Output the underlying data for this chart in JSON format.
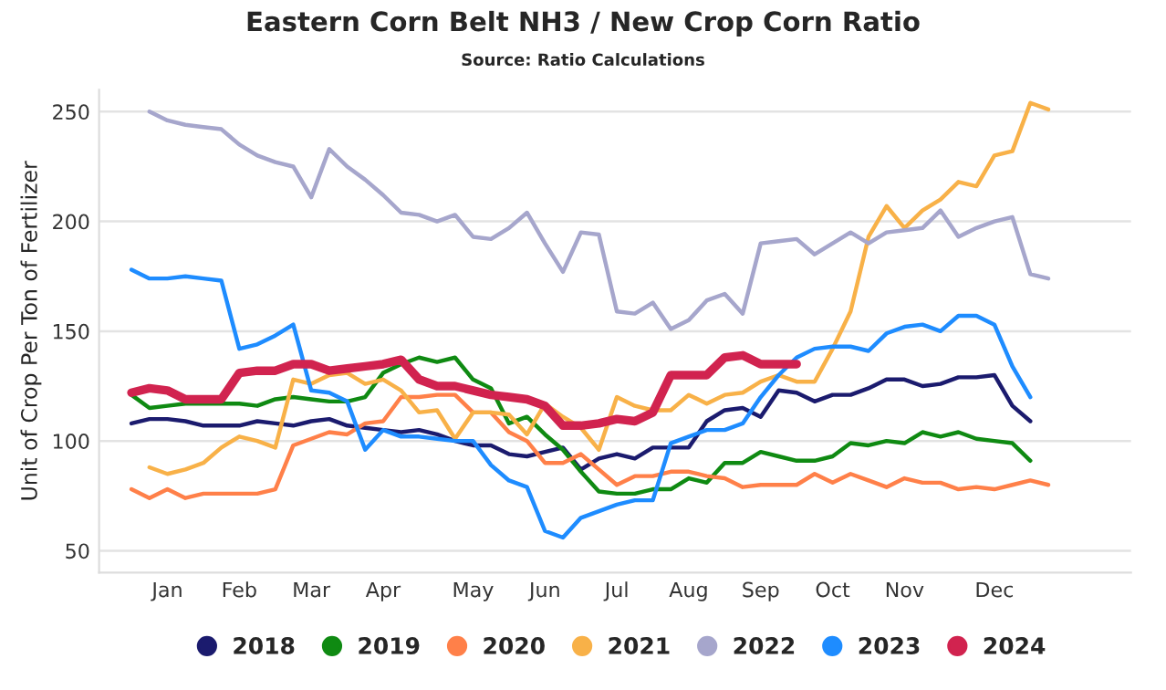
{
  "chart_data": {
    "type": "line",
    "title": "Eastern Corn Belt NH3 / New Crop Corn Ratio",
    "subtitle": "Source: Ratio Calculations",
    "ylabel": "Unit of Crop Per Ton of Fertilizer",
    "categories": [
      null,
      null,
      "Jan",
      null,
      null,
      null,
      "Feb",
      null,
      null,
      null,
      "Mar",
      null,
      null,
      null,
      "Apr",
      null,
      null,
      null,
      null,
      "May",
      null,
      null,
      null,
      "Jun",
      null,
      null,
      null,
      "Jul",
      null,
      null,
      null,
      "Aug",
      null,
      null,
      null,
      "Sep",
      null,
      null,
      null,
      "Oct",
      null,
      null,
      null,
      "Nov",
      null,
      null,
      null,
      null,
      "Dec",
      null,
      null,
      null
    ],
    "ylim": [
      40,
      260
    ],
    "yticks": [
      50,
      100,
      150,
      200,
      250
    ],
    "grid": "y",
    "legend": "bottom",
    "series": [
      {
        "name": "2018",
        "color": "#1b1b6e",
        "values": [
          108,
          110,
          110,
          109,
          107,
          107,
          107,
          109,
          108,
          107,
          109,
          110,
          107,
          106,
          105,
          104,
          105,
          103,
          100,
          98,
          98,
          94,
          93,
          95,
          97,
          87,
          92,
          94,
          92,
          97,
          97,
          97,
          109,
          114,
          115,
          111,
          123,
          122,
          118,
          121,
          121,
          124,
          128,
          128,
          125,
          126,
          129,
          129,
          130,
          116,
          109,
          null
        ]
      },
      {
        "name": "2019",
        "color": "#0f8a12",
        "values": [
          121,
          115,
          116,
          117,
          117,
          117,
          117,
          116,
          119,
          120,
          119,
          118,
          118,
          120,
          131,
          135,
          138,
          136,
          138,
          128,
          124,
          108,
          111,
          103,
          96,
          86,
          77,
          76,
          76,
          78,
          78,
          83,
          81,
          90,
          90,
          95,
          93,
          91,
          91,
          93,
          99,
          98,
          100,
          99,
          104,
          102,
          104,
          101,
          100,
          99,
          91,
          null
        ]
      },
      {
        "name": "2020",
        "color": "#ff8049",
        "values": [
          78,
          74,
          78,
          74,
          76,
          76,
          76,
          76,
          78,
          98,
          101,
          104,
          103,
          108,
          109,
          120,
          120,
          121,
          121,
          113,
          113,
          104,
          100,
          90,
          90,
          94,
          87,
          80,
          84,
          84,
          86,
          86,
          84,
          83,
          79,
          80,
          80,
          80,
          85,
          81,
          85,
          82,
          79,
          83,
          81,
          81,
          78,
          79,
          78,
          80,
          82,
          80
        ]
      },
      {
        "name": "2021",
        "color": "#f8b148",
        "values": [
          null,
          88,
          85,
          87,
          90,
          97,
          102,
          100,
          97,
          128,
          126,
          130,
          131,
          126,
          128,
          123,
          113,
          114,
          101,
          113,
          113,
          112,
          103,
          117,
          111,
          106,
          96,
          120,
          116,
          114,
          114,
          121,
          117,
          121,
          122,
          127,
          130,
          127,
          127,
          142,
          159,
          193,
          207,
          197,
          205,
          210,
          218,
          216,
          230,
          232,
          254,
          251
        ]
      },
      {
        "name": "2022",
        "color": "#a6a6cc",
        "values": [
          null,
          250,
          246,
          244,
          243,
          242,
          235,
          230,
          227,
          225,
          211,
          233,
          225,
          219,
          212,
          204,
          203,
          200,
          203,
          193,
          192,
          197,
          204,
          190,
          177,
          195,
          194,
          159,
          158,
          163,
          151,
          155,
          164,
          167,
          158,
          190,
          191,
          192,
          185,
          190,
          195,
          190,
          195,
          196,
          197,
          205,
          193,
          197,
          200,
          202,
          176,
          174
        ]
      },
      {
        "name": "2023",
        "color": "#1e8cff",
        "values": [
          178,
          174,
          174,
          175,
          174,
          173,
          142,
          144,
          148,
          153,
          123,
          122,
          118,
          96,
          105,
          102,
          102,
          101,
          100,
          100,
          89,
          82,
          79,
          59,
          56,
          65,
          68,
          71,
          73,
          73,
          99,
          102,
          105,
          105,
          108,
          120,
          130,
          138,
          142,
          143,
          143,
          141,
          149,
          152,
          153,
          150,
          157,
          157,
          153,
          134,
          120,
          null
        ]
      },
      {
        "name": "2024",
        "color": "#d1234f",
        "values": [
          122,
          124,
          123,
          119,
          119,
          119,
          131,
          132,
          132,
          135,
          135,
          132,
          133,
          134,
          135,
          137,
          128,
          125,
          125,
          123,
          121,
          120,
          119,
          116,
          107,
          107,
          108,
          110,
          109,
          113,
          130,
          130,
          130,
          138,
          139,
          135,
          135,
          135,
          null,
          null,
          null,
          null,
          null,
          null,
          null,
          null,
          null,
          null,
          null,
          null,
          null,
          null
        ]
      }
    ]
  }
}
